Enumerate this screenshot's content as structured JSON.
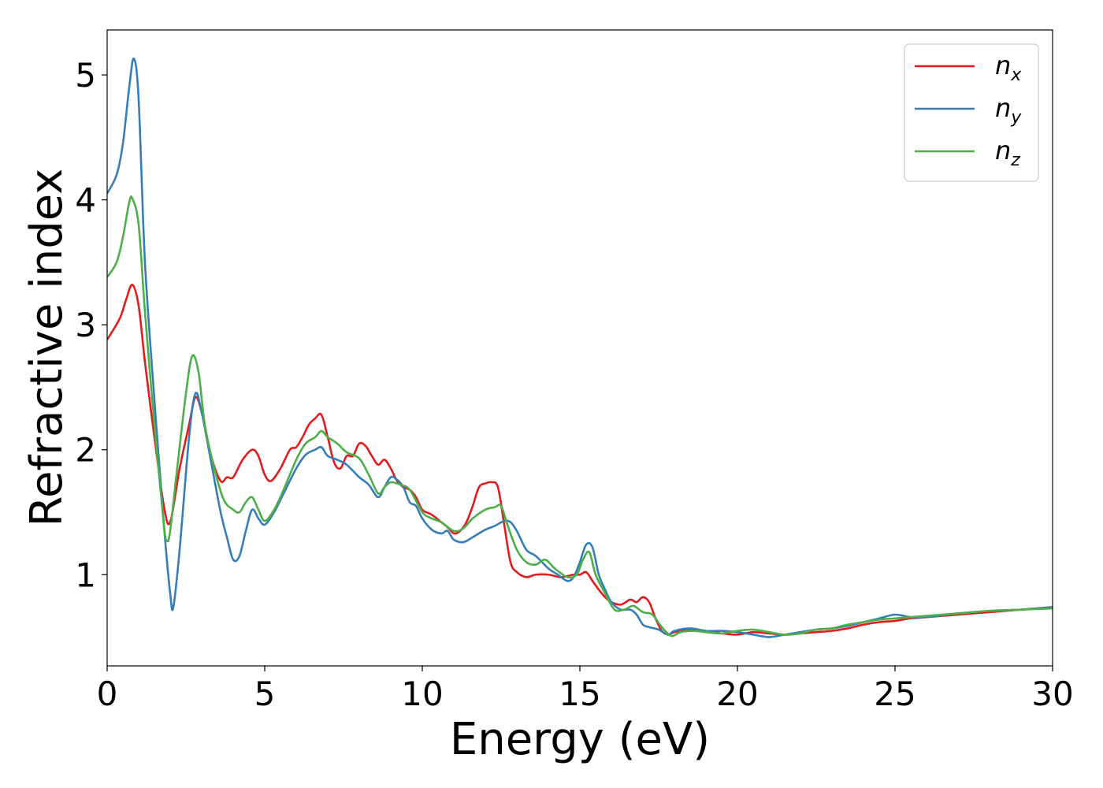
{
  "chart_data": {
    "type": "line",
    "title": "",
    "xlabel": "Energy (eV)",
    "ylabel": "Refractive index",
    "xlim": [
      0,
      30
    ],
    "ylim": [
      0.27,
      5.36
    ],
    "xticks": [
      0,
      5,
      10,
      15,
      20,
      25,
      30
    ],
    "yticks": [
      1,
      2,
      3,
      4,
      5
    ],
    "grid": false,
    "legend_position": "top-right",
    "series": [
      {
        "name": "n",
        "subscript": "x",
        "color": "#e41a1c",
        "x": [
          0,
          0.4,
          0.6,
          0.8,
          1.0,
          1.2,
          1.5,
          1.8,
          2.0,
          2.3,
          2.6,
          2.8,
          3.0,
          3.3,
          3.6,
          3.8,
          4.0,
          4.3,
          4.6,
          4.8,
          5.0,
          5.2,
          5.5,
          5.8,
          6.0,
          6.2,
          6.4,
          6.6,
          6.8,
          7.0,
          7.2,
          7.4,
          7.6,
          7.8,
          8.0,
          8.2,
          8.4,
          8.6,
          8.8,
          9.0,
          9.2,
          9.4,
          9.6,
          9.8,
          10.0,
          10.3,
          10.6,
          10.8,
          11.0,
          11.2,
          11.4,
          11.6,
          11.8,
          12.0,
          12.2,
          12.4,
          12.6,
          12.8,
          13.0,
          13.3,
          13.6,
          14.0,
          14.4,
          14.8,
          15.0,
          15.2,
          15.4,
          15.6,
          15.8,
          16.0,
          16.3,
          16.6,
          16.8,
          17.0,
          17.2,
          17.4,
          17.6,
          17.8,
          18.0,
          18.5,
          19.0,
          19.5,
          20.0,
          20.5,
          21.0,
          21.5,
          22.0,
          22.5,
          23.0,
          23.5,
          24.0,
          24.5,
          25.0,
          25.5,
          26.0,
          27.0,
          28.0,
          29.0,
          30.0
        ],
        "y": [
          2.88,
          3.05,
          3.2,
          3.32,
          3.15,
          2.7,
          2.1,
          1.55,
          1.42,
          1.85,
          2.2,
          2.42,
          2.3,
          1.95,
          1.75,
          1.78,
          1.78,
          1.92,
          2.0,
          1.95,
          1.8,
          1.75,
          1.85,
          2.0,
          2.02,
          2.1,
          2.2,
          2.25,
          2.28,
          2.1,
          1.9,
          1.85,
          1.95,
          1.95,
          2.05,
          2.03,
          1.95,
          1.88,
          1.92,
          1.85,
          1.75,
          1.7,
          1.68,
          1.62,
          1.52,
          1.48,
          1.42,
          1.38,
          1.33,
          1.35,
          1.42,
          1.55,
          1.7,
          1.73,
          1.74,
          1.7,
          1.4,
          1.1,
          1.02,
          0.98,
          1.0,
          1.0,
          0.98,
          1.0,
          1.0,
          1.02,
          0.95,
          0.88,
          0.82,
          0.78,
          0.76,
          0.8,
          0.78,
          0.82,
          0.78,
          0.65,
          0.55,
          0.52,
          0.54,
          0.56,
          0.55,
          0.53,
          0.52,
          0.54,
          0.53,
          0.52,
          0.53,
          0.54,
          0.55,
          0.57,
          0.6,
          0.62,
          0.63,
          0.65,
          0.66,
          0.68,
          0.7,
          0.72,
          0.74
        ]
      },
      {
        "name": "n",
        "subscript": "y",
        "color": "#377eb8",
        "x": [
          0,
          0.3,
          0.5,
          0.7,
          0.85,
          1.0,
          1.2,
          1.5,
          1.8,
          2.0,
          2.1,
          2.3,
          2.6,
          2.8,
          3.0,
          3.3,
          3.6,
          3.8,
          4.0,
          4.2,
          4.4,
          4.6,
          4.8,
          5.0,
          5.3,
          5.6,
          6.0,
          6.3,
          6.6,
          6.8,
          7.0,
          7.3,
          7.6,
          8.0,
          8.3,
          8.6,
          8.8,
          9.0,
          9.2,
          9.4,
          9.6,
          9.8,
          10.0,
          10.3,
          10.6,
          10.8,
          11.0,
          11.3,
          11.6,
          12.0,
          12.3,
          12.6,
          12.8,
          13.0,
          13.3,
          13.6,
          14.0,
          14.3,
          14.6,
          14.8,
          15.0,
          15.2,
          15.4,
          15.6,
          15.8,
          16.0,
          16.3,
          16.6,
          16.8,
          17.0,
          17.2,
          17.5,
          17.8,
          18.0,
          18.5,
          19.0,
          19.5,
          20.0,
          20.5,
          21.0,
          21.5,
          22.0,
          22.5,
          23.0,
          23.5,
          24.0,
          24.5,
          25.0,
          25.5,
          26.0,
          27.0,
          28.0,
          29.0,
          30.0
        ],
        "y": [
          4.05,
          4.2,
          4.45,
          4.9,
          5.13,
          4.8,
          3.5,
          2.4,
          1.4,
          0.85,
          0.74,
          1.2,
          2.1,
          2.45,
          2.3,
          1.9,
          1.5,
          1.3,
          1.12,
          1.15,
          1.35,
          1.52,
          1.45,
          1.4,
          1.5,
          1.65,
          1.85,
          1.96,
          2.0,
          2.02,
          1.95,
          1.92,
          1.88,
          1.78,
          1.72,
          1.62,
          1.7,
          1.78,
          1.76,
          1.7,
          1.58,
          1.55,
          1.45,
          1.36,
          1.33,
          1.35,
          1.28,
          1.26,
          1.3,
          1.36,
          1.39,
          1.43,
          1.42,
          1.35,
          1.2,
          1.15,
          1.05,
          1.0,
          0.95,
          0.98,
          1.1,
          1.24,
          1.22,
          1.0,
          0.88,
          0.78,
          0.72,
          0.72,
          0.68,
          0.6,
          0.58,
          0.56,
          0.52,
          0.55,
          0.57,
          0.55,
          0.55,
          0.54,
          0.52,
          0.5,
          0.52,
          0.54,
          0.56,
          0.57,
          0.59,
          0.62,
          0.65,
          0.68,
          0.66,
          0.66,
          0.69,
          0.71,
          0.72,
          0.74
        ]
      },
      {
        "name": "n",
        "subscript": "z",
        "color": "#4daf4a",
        "x": [
          0,
          0.3,
          0.5,
          0.7,
          0.8,
          1.0,
          1.2,
          1.5,
          1.8,
          1.9,
          2.0,
          2.2,
          2.5,
          2.7,
          2.9,
          3.1,
          3.4,
          3.7,
          4.0,
          4.2,
          4.4,
          4.6,
          4.8,
          5.0,
          5.3,
          5.6,
          6.0,
          6.3,
          6.6,
          6.8,
          7.0,
          7.3,
          7.6,
          8.0,
          8.3,
          8.6,
          8.8,
          9.0,
          9.3,
          9.6,
          10.0,
          10.3,
          10.6,
          11.0,
          11.3,
          11.6,
          12.0,
          12.3,
          12.5,
          12.7,
          13.0,
          13.3,
          13.6,
          13.9,
          14.2,
          14.6,
          14.9,
          15.1,
          15.3,
          15.5,
          15.8,
          16.1,
          16.4,
          16.7,
          17.0,
          17.3,
          17.6,
          17.9,
          18.2,
          18.6,
          19.0,
          19.5,
          20.0,
          20.5,
          21.0,
          21.5,
          22.0,
          22.5,
          23.0,
          23.5,
          24.0,
          24.5,
          25.0,
          25.5,
          26.0,
          27.0,
          28.0,
          29.0,
          30.0
        ],
        "y": [
          3.38,
          3.5,
          3.7,
          3.98,
          4.01,
          3.8,
          3.1,
          2.2,
          1.4,
          1.27,
          1.35,
          1.8,
          2.45,
          2.75,
          2.62,
          2.2,
          1.85,
          1.6,
          1.52,
          1.5,
          1.58,
          1.62,
          1.52,
          1.43,
          1.52,
          1.68,
          1.92,
          2.05,
          2.1,
          2.15,
          2.1,
          2.05,
          1.98,
          1.93,
          1.8,
          1.65,
          1.7,
          1.74,
          1.72,
          1.68,
          1.5,
          1.45,
          1.42,
          1.35,
          1.37,
          1.45,
          1.52,
          1.54,
          1.55,
          1.4,
          1.2,
          1.1,
          1.08,
          1.12,
          1.05,
          0.98,
          1.0,
          1.12,
          1.18,
          1.0,
          0.85,
          0.72,
          0.72,
          0.75,
          0.7,
          0.68,
          0.58,
          0.51,
          0.54,
          0.55,
          0.54,
          0.53,
          0.55,
          0.56,
          0.54,
          0.52,
          0.53,
          0.56,
          0.57,
          0.6,
          0.62,
          0.64,
          0.65,
          0.66,
          0.67,
          0.69,
          0.71,
          0.72,
          0.73
        ]
      }
    ]
  }
}
